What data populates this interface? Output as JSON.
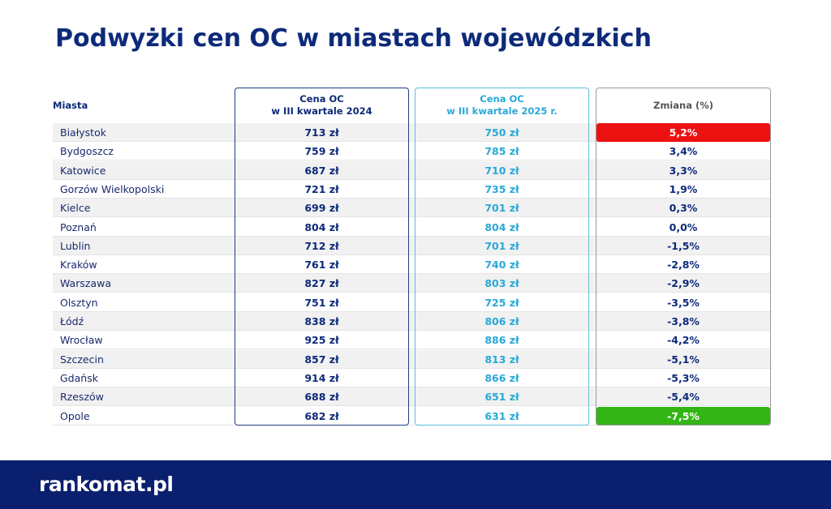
{
  "title": "Podwyżki cen OC w miastach wojewódzkich",
  "table": {
    "header": [
      "Miasta",
      "Cena OC\nw III kwartale 2024",
      "Cena OC\nw III kwartale 2025 r.",
      "Zmiana (%)"
    ],
    "rows": [
      [
        "Białystok",
        "713 zł",
        "750 zł",
        "5,2%"
      ],
      [
        "Bydgoszcz",
        "759 zł",
        "785 zł",
        "3,4%"
      ],
      [
        "Katowice",
        "687 zł",
        "710 zł",
        "3,3%"
      ],
      [
        "Gorzów Wielkopolski",
        "721 zł",
        "735 zł",
        "1,9%"
      ],
      [
        "Kielce",
        "699 zł",
        "701 zł",
        "0,3%"
      ],
      [
        "Poznań",
        "804 zł",
        "804 zł",
        "0,0%"
      ],
      [
        "Lublin",
        "712 zł",
        "701 zł",
        "-1,5%"
      ],
      [
        "Kraków",
        "761 zł",
        "740 zł",
        "-2,8%"
      ],
      [
        "Warszawa",
        "827 zł",
        "803 zł",
        "-2,9%"
      ],
      [
        "Olsztyn",
        "751 zł",
        "725 zł",
        "-3,5%"
      ],
      [
        "Łódź",
        "838 zł",
        "806 zł",
        "-3,8%"
      ],
      [
        "Wrocław",
        "925 zł",
        "886 zł",
        "-4,2%"
      ],
      [
        "Szczecin",
        "857 zł",
        "813 zł",
        "-5,1%"
      ],
      [
        "Gdańsk",
        "914 zł",
        "866 zł",
        "-5,3%"
      ],
      [
        "Rzeszów",
        "688 zł",
        "651 zł",
        "-5,4%"
      ],
      [
        "Opole",
        "682 zł",
        "631 zł",
        "-7,5%"
      ]
    ]
  },
  "footer": {
    "logo": "rankomat.pl"
  }
}
